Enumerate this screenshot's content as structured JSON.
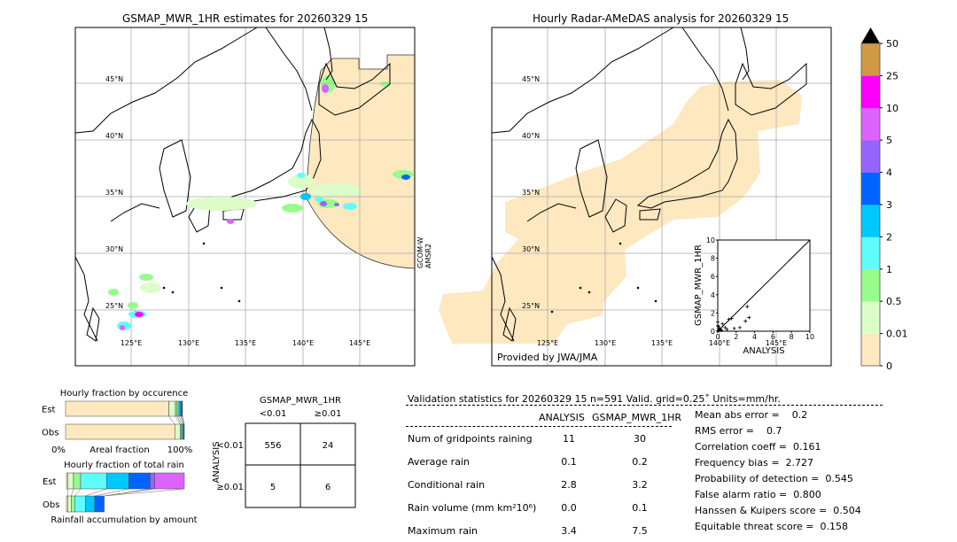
{
  "left_map": {
    "title": "GSMAP_MWR_1HR estimates for 20260329 15",
    "sensor_label": [
      "GCOM-W",
      "AMSR2"
    ]
  },
  "right_map": {
    "title": "Hourly Radar-AMeDAS analysis for 20260329 15",
    "credit": "Provided by JWA/JMA"
  },
  "lat_ticks": [
    "45°N",
    "40°N",
    "35°N",
    "30°N",
    "25°N"
  ],
  "lon_ticks": [
    "125°E",
    "130°E",
    "135°E",
    "140°E",
    "145°E"
  ],
  "colorbar": {
    "ticks": [
      "0",
      "0.01",
      "0.5",
      "1",
      "2",
      "3",
      "4",
      "5",
      "10",
      "25",
      "50"
    ],
    "colors": [
      "#fee8c0",
      "#dcfdc8",
      "#98fc8c",
      "#60fcfc",
      "#00c8fc",
      "#0064fc",
      "#9664fc",
      "#dc64fc",
      "#fc00fc",
      "#d09a44"
    ],
    "extend_color": "#000000"
  },
  "chart_data": [
    {
      "type": "scatter",
      "title": "",
      "xlabel": "ANALYSIS",
      "ylabel": "GSMAP_MWR_1HR",
      "xlim": [
        0,
        10
      ],
      "ylim": [
        0,
        10
      ],
      "ticks": [
        "0",
        "2",
        "4",
        "6",
        "8",
        "10"
      ],
      "points": [
        [
          0.1,
          0.1
        ],
        [
          0.2,
          0.3
        ],
        [
          0.3,
          0.2
        ],
        [
          0.5,
          0.8
        ],
        [
          0.8,
          0.4
        ],
        [
          1.0,
          0.2
        ],
        [
          1.2,
          1.3
        ],
        [
          1.5,
          1.4
        ],
        [
          1.8,
          0.3
        ],
        [
          2.4,
          0.4
        ],
        [
          3.0,
          1.1
        ],
        [
          3.2,
          2.7
        ],
        [
          3.4,
          1.5
        ],
        [
          0.0,
          1.0
        ],
        [
          0.0,
          0.6
        ],
        [
          0.1,
          0.5
        ],
        [
          0.4,
          0.1
        ]
      ]
    },
    {
      "type": "bar",
      "title": "Hourly fraction by occurence",
      "xlabel": "Areal fraction",
      "categories": [
        "Est",
        "Obs"
      ],
      "x_ticks": [
        "0%",
        "100%"
      ],
      "series_percent": {
        "Est": [
          87,
          5.5,
          1.5,
          1.5,
          1.5,
          1,
          0.5
        ],
        "Obs": [
          92,
          4.5,
          1,
          1,
          0.8,
          0.5,
          0.2
        ]
      }
    },
    {
      "type": "bar",
      "title": "Hourly fraction of total rain",
      "xlabel": "Rainfall accumulation by amount",
      "categories": [
        "Est",
        "Obs"
      ],
      "series_percent": {
        "Est": [
          1,
          5,
          6,
          22,
          19,
          18,
          4,
          25
        ],
        "Obs": [
          1,
          3,
          3,
          9,
          8,
          8,
          0,
          0
        ]
      }
    }
  ],
  "contingency": {
    "title": "GSMAP_MWR_1HR",
    "col_labels": [
      "<0.01",
      "≥0.01"
    ],
    "row_title": "ANALYSIS",
    "row_labels": [
      "<0.01",
      "≥0.01"
    ],
    "cells": [
      [
        "556",
        "24"
      ],
      [
        "5",
        "6"
      ]
    ]
  },
  "stats": {
    "header": "Validation statistics for 20260329 15  n=591 Valid. grid=0.25˚ Units=mm/hr.",
    "col_headers": [
      "ANALYSIS",
      "GSMAP_MWR_1HR"
    ],
    "rows": [
      {
        "label": "Num of gridpoints raining",
        "a": "11",
        "g": "30"
      },
      {
        "label": "Average rain",
        "a": "0.1",
        "g": "0.2"
      },
      {
        "label": "Conditional rain",
        "a": "2.8",
        "g": "3.2"
      },
      {
        "label": "Rain volume (mm km²10⁶)",
        "a": "0.0",
        "g": "0.1"
      },
      {
        "label": "Maximum rain",
        "a": "3.4",
        "g": "7.5"
      }
    ],
    "scores": [
      "Mean abs error =    0.2",
      "RMS error =    0.7",
      "Correlation coeff =  0.161",
      "Frequency bias =  2.727",
      "Probability of detection =  0.545",
      "False alarm ratio =  0.800",
      "Hanssen & Kuipers score =  0.504",
      "Equitable threat score =  0.158"
    ]
  }
}
